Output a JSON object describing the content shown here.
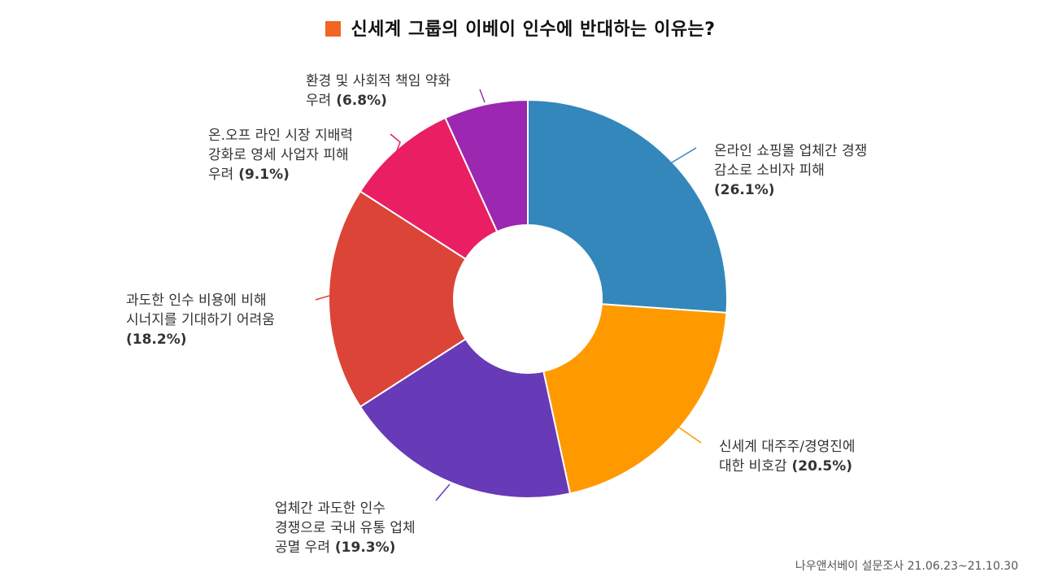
{
  "title": {
    "text": "신세계 그룹의 이베이 인수에 반대하는 이유는?",
    "marker_color": "#F26522"
  },
  "chart_data": {
    "type": "pie",
    "donut": true,
    "title": "신세계 그룹의 이베이 인수에 반대하는 이유는?",
    "slices": [
      {
        "lines": [
          "온라인 쇼핑몰 업체간 경쟁",
          "감소로 소비자 피해"
        ],
        "pct": "(26.1%)",
        "value": 26.1,
        "color": "#3387BB"
      },
      {
        "lines": [
          "신세계 대주주/경영진에",
          "대한 비호감"
        ],
        "pct": "(20.5%)",
        "value": 20.5,
        "color": "#FF9900"
      },
      {
        "lines": [
          "업체간 과도한 인수",
          "경쟁으로 국내 유통 업체",
          "공멸 우려"
        ],
        "pct": "(19.3%)",
        "value": 19.3,
        "color": "#673AB7"
      },
      {
        "lines": [
          "과도한 인수 비용에 비해",
          "시너지를 기대하기 어려움"
        ],
        "pct": "(18.2%)",
        "value": 18.2,
        "color": "#DB4437"
      },
      {
        "lines": [
          "온.오프 라인 시장 지배력",
          "강화로 영세 사업자 피해",
          "우려"
        ],
        "pct": "(9.1%)",
        "value": 9.1,
        "color": "#E91E63"
      },
      {
        "lines": [
          "환경 및 사회적 책임 약화",
          "우려"
        ],
        "pct": "(6.8%)",
        "value": 6.8,
        "color": "#9C27B0"
      }
    ]
  },
  "source": "나우앤서베이 설문조사 21.06.23~21.10.30"
}
